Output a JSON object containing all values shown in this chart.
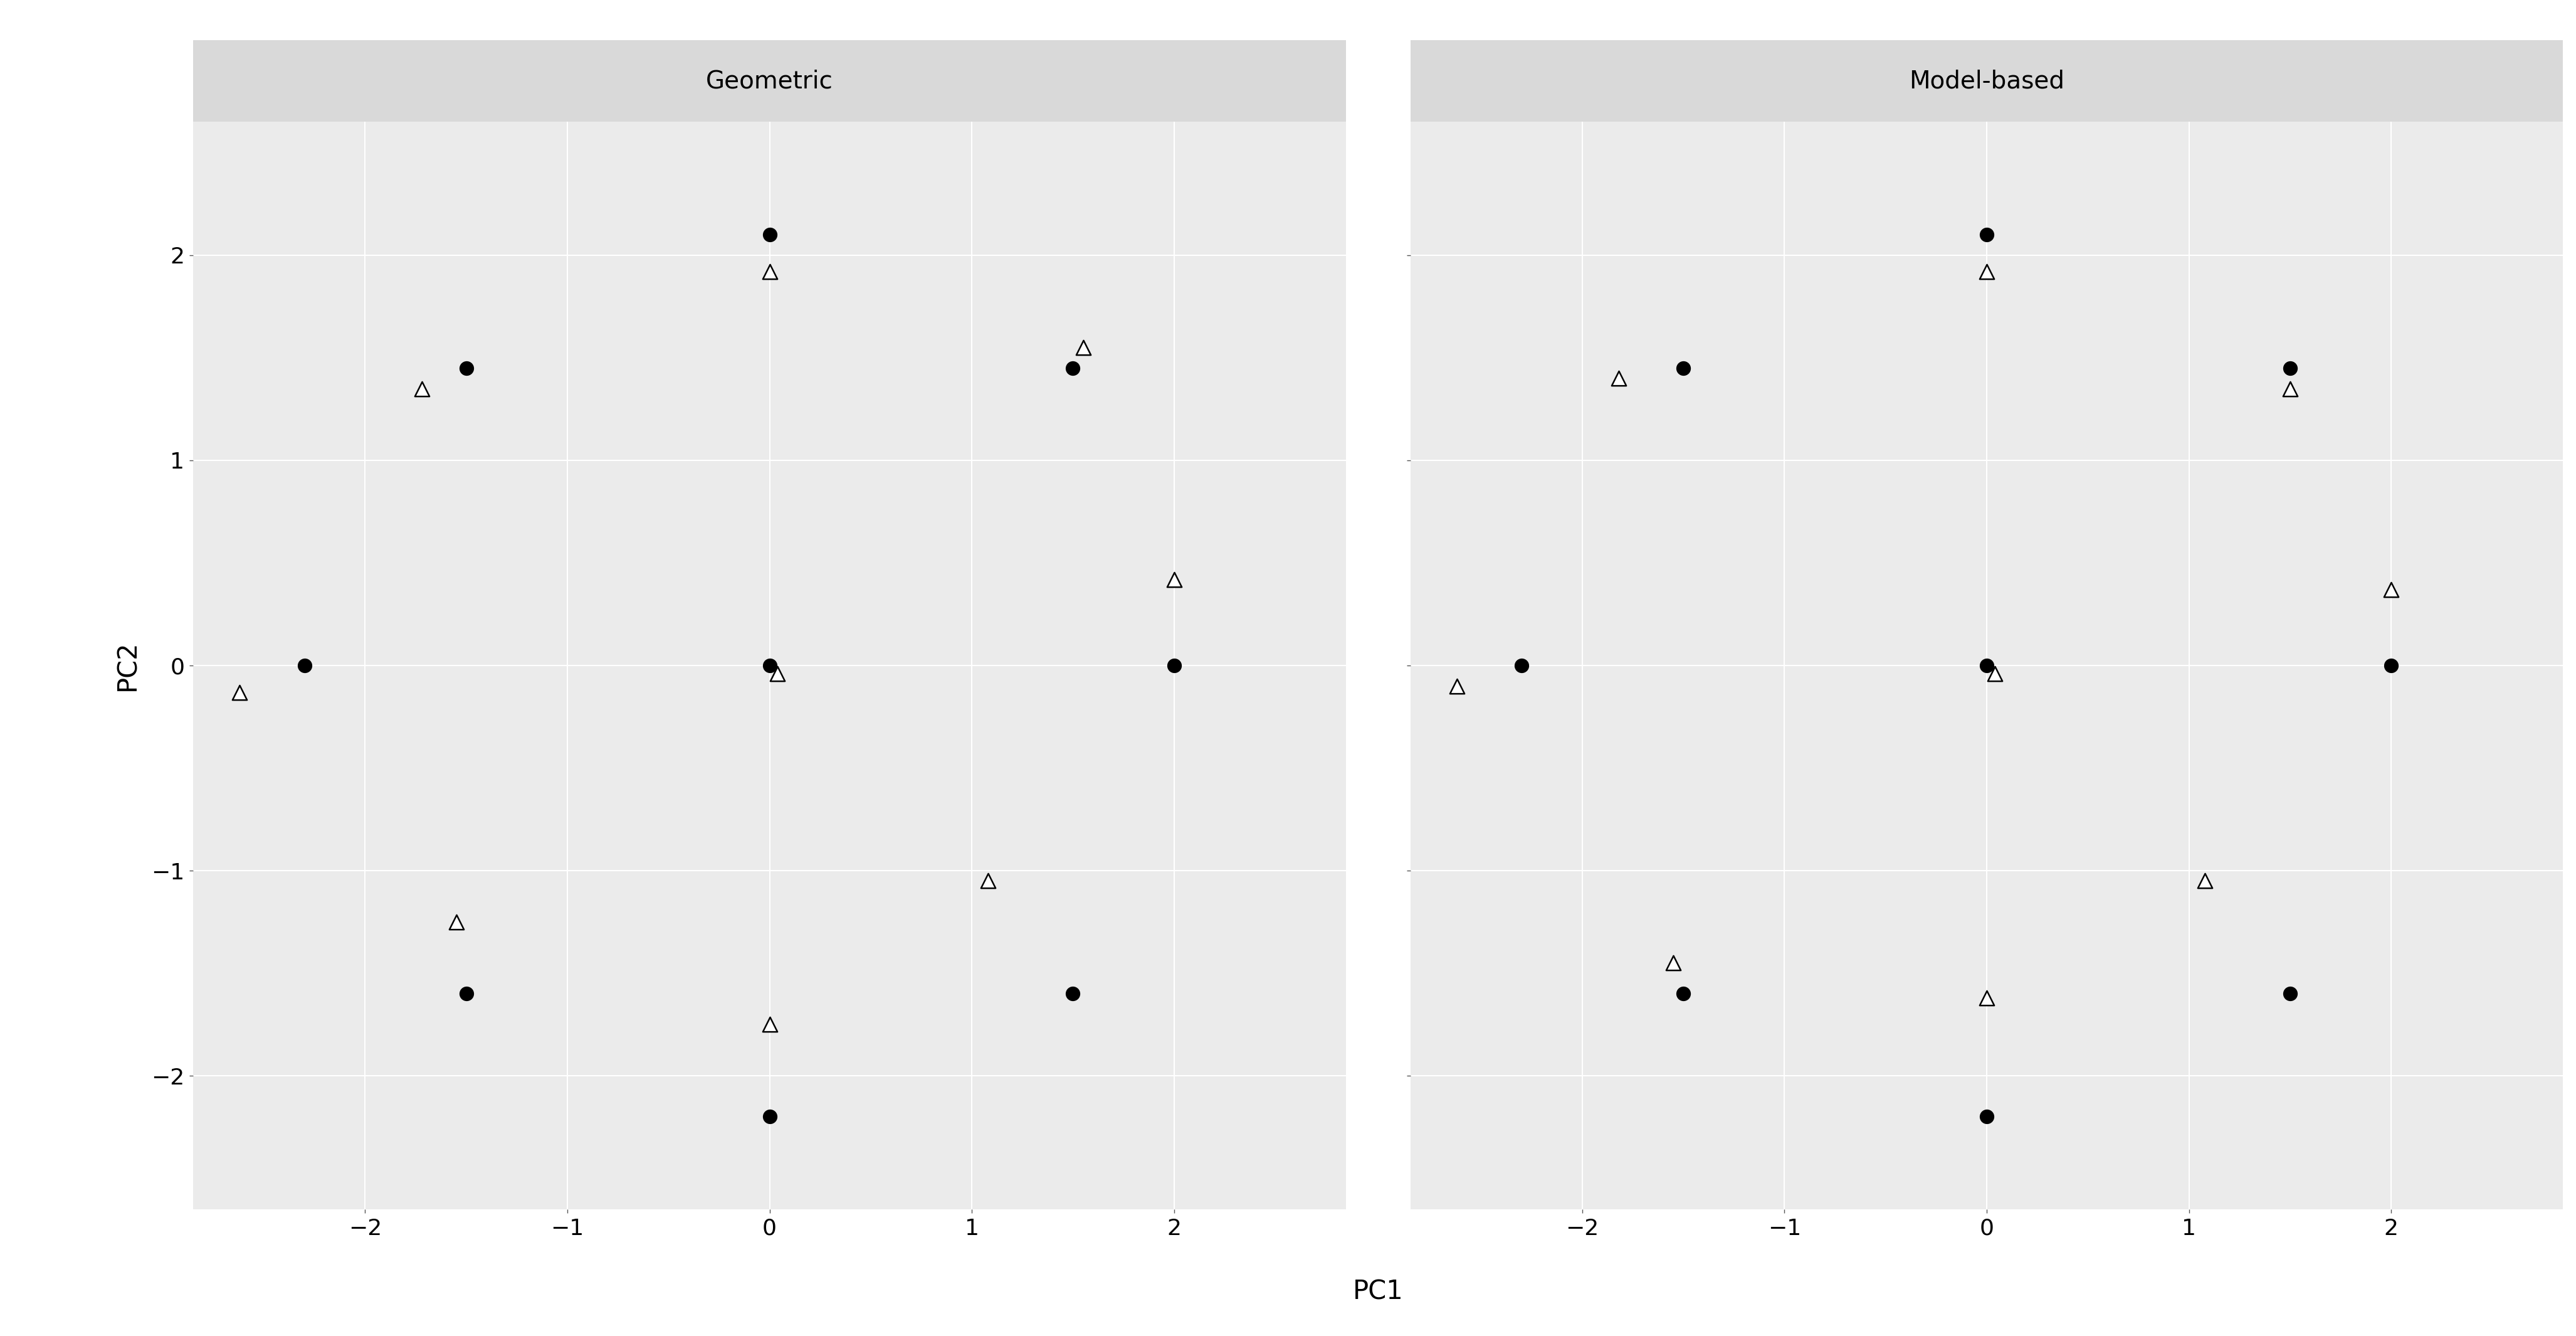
{
  "panel_titles": [
    "Geometric",
    "Model-based"
  ],
  "xlabel": "PC1",
  "ylabel": "PC2",
  "xlim": [
    -2.85,
    2.85
  ],
  "ylim": [
    -2.65,
    2.65
  ],
  "xticks": [
    -2,
    -1,
    0,
    1,
    2
  ],
  "yticks": [
    -2,
    -1,
    0,
    1,
    2
  ],
  "plot_bg": "#ebebeb",
  "strip_bg": "#d9d9d9",
  "fig_bg": "#ffffff",
  "outer_bg": "#ffffff",
  "grid_color": "#ffffff",
  "dot_color": "#000000",
  "tri_facecolor": "#ffffff",
  "tri_edgecolor": "#000000",
  "dot_size": 280,
  "tri_size": 280,
  "tri_linewidth": 1.8,
  "tick_fontsize": 26,
  "label_fontsize": 30,
  "strip_fontsize": 28,
  "dots_geo": [
    [
      0.0,
      2.1
    ],
    [
      -2.3,
      0.0
    ],
    [
      0.0,
      0.0
    ],
    [
      2.0,
      0.0
    ],
    [
      -1.5,
      1.45
    ],
    [
      1.5,
      1.45
    ],
    [
      0.0,
      -2.2
    ],
    [
      -1.5,
      -1.6
    ],
    [
      1.5,
      -1.6
    ]
  ],
  "triangles_geo": [
    [
      0.0,
      1.92
    ],
    [
      -2.62,
      -0.13
    ],
    [
      0.04,
      -0.04
    ],
    [
      2.0,
      0.42
    ],
    [
      -1.72,
      1.35
    ],
    [
      1.55,
      1.55
    ],
    [
      0.0,
      -1.75
    ],
    [
      -1.55,
      -1.25
    ],
    [
      1.08,
      -1.05
    ]
  ],
  "dots_model": [
    [
      0.0,
      2.1
    ],
    [
      -2.3,
      0.0
    ],
    [
      0.0,
      0.0
    ],
    [
      2.0,
      0.0
    ],
    [
      -1.5,
      1.45
    ],
    [
      1.5,
      1.45
    ],
    [
      0.0,
      -2.2
    ],
    [
      -1.5,
      -1.6
    ],
    [
      1.5,
      -1.6
    ]
  ],
  "triangles_model": [
    [
      0.0,
      1.92
    ],
    [
      -2.62,
      -0.1
    ],
    [
      0.04,
      -0.04
    ],
    [
      2.0,
      0.37
    ],
    [
      -1.82,
      1.4
    ],
    [
      1.5,
      1.35
    ],
    [
      0.0,
      -1.62
    ],
    [
      -1.55,
      -1.45
    ],
    [
      1.08,
      -1.05
    ]
  ]
}
